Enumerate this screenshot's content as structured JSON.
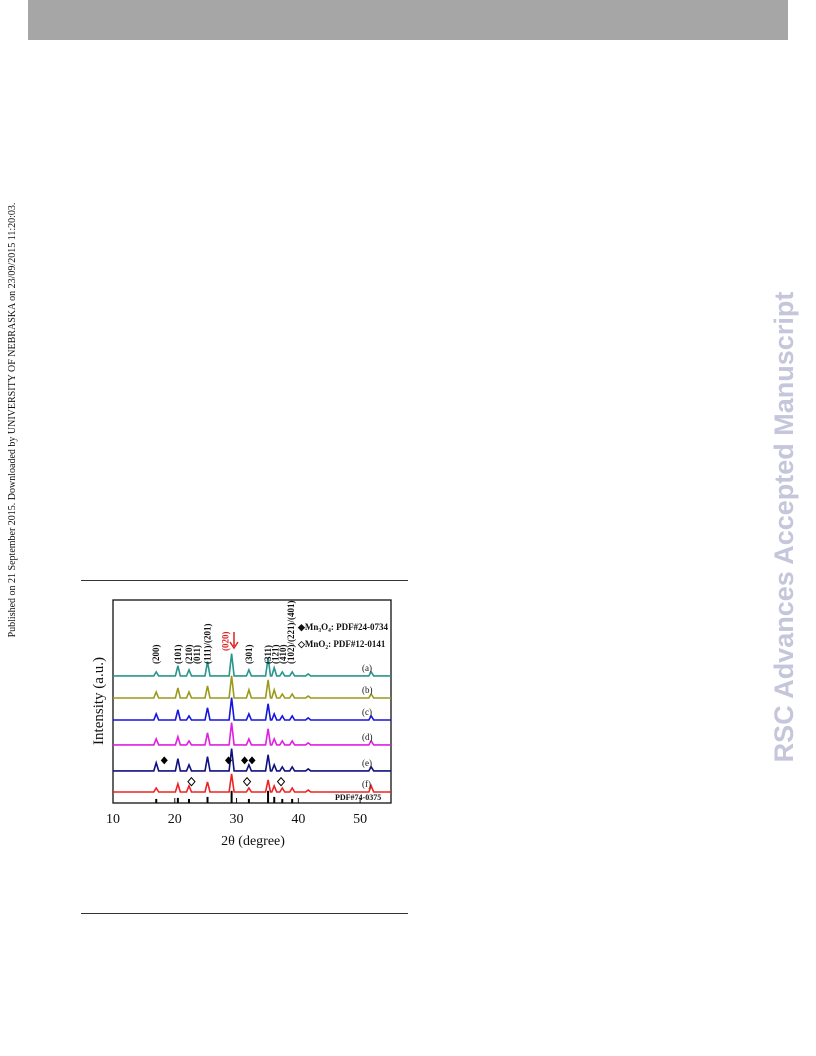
{
  "sidebar_note": "Published on 21 September 2015. Downloaded by UNIVERSITY OF NEBRASKA on 23/09/2015 11:20:03.",
  "watermark": "RSC Advances Accepted Manuscript",
  "chart_data": {
    "type": "line",
    "xlabel": "2θ (degree)",
    "ylabel": "Intensity (a.u.)",
    "xlim": [
      10,
      55
    ],
    "xticks": [
      10,
      20,
      30,
      40,
      50
    ],
    "ylim": [
      0,
      100
    ],
    "x": [
      10,
      16.6,
      17,
      17.4,
      20.1,
      20.5,
      20.9,
      21.9,
      22.3,
      22.7,
      24.9,
      25.3,
      25.7,
      28.8,
      29.2,
      29.6,
      31.6,
      32,
      32.4,
      34.7,
      35.1,
      35.5,
      35.7,
      36.1,
      36.5,
      37.0,
      37.4,
      37.8,
      38.6,
      39,
      39.4,
      41.2,
      41.6,
      42.0,
      51.4,
      51.8,
      52.2,
      55
    ],
    "series": [
      {
        "name": "(a)",
        "color": "#27968c",
        "values": [
          62.6,
          62.6,
          64.6,
          62.6,
          62.6,
          67.6,
          62.6,
          62.6,
          65.6,
          62.6,
          62.6,
          69.6,
          62.6,
          62.6,
          73.6,
          62.6,
          62.6,
          65.6,
          62.6,
          62.6,
          71.6,
          62.6,
          62.6,
          66.6,
          62.6,
          62.6,
          64.6,
          62.6,
          62.6,
          64.6,
          62.6,
          62.6,
          63.6,
          62.6,
          62.6,
          64.6,
          62.6,
          62.6
        ]
      },
      {
        "name": "(b)",
        "color": "#9a9a1a",
        "values": [
          51.7,
          51.7,
          54.7,
          51.7,
          51.7,
          56.7,
          51.7,
          51.7,
          54.7,
          51.7,
          51.7,
          57.7,
          51.7,
          51.7,
          62.7,
          51.7,
          51.7,
          55.7,
          51.7,
          51.7,
          60.7,
          51.7,
          51.7,
          55.7,
          51.7,
          51.7,
          53.7,
          51.7,
          51.7,
          53.7,
          51.7,
          51.7,
          52.7,
          51.7,
          51.7,
          53.7,
          51.7,
          51.7
        ]
      },
      {
        "name": "(c)",
        "color": "#1515e0",
        "values": [
          40.9,
          40.9,
          43.9,
          40.9,
          40.9,
          45.9,
          40.9,
          40.9,
          42.9,
          40.9,
          40.9,
          46.9,
          40.9,
          40.9,
          51.9,
          40.9,
          40.9,
          43.9,
          40.9,
          40.9,
          48.9,
          40.9,
          40.9,
          43.9,
          40.9,
          40.9,
          42.9,
          40.9,
          40.9,
          42.9,
          40.9,
          40.9,
          41.9,
          40.9,
          40.9,
          42.9,
          40.9,
          40.9
        ]
      },
      {
        "name": "(d)",
        "color": "#e020e0",
        "values": [
          28.6,
          28.6,
          31.6,
          28.6,
          28.6,
          32.6,
          28.6,
          28.6,
          30.6,
          28.6,
          28.6,
          34.6,
          28.6,
          28.6,
          39.6,
          28.6,
          28.6,
          31.6,
          28.6,
          28.6,
          36.6,
          28.6,
          28.6,
          31.6,
          28.6,
          28.6,
          30.6,
          28.6,
          28.6,
          30.6,
          28.6,
          28.6,
          29.6,
          28.6,
          28.6,
          30.6,
          28.6,
          28.6
        ]
      },
      {
        "name": "(e)",
        "color": "#101080",
        "values": [
          15.8,
          15.8,
          19.8,
          15.8,
          15.8,
          21.8,
          15.8,
          15.8,
          18.8,
          15.8,
          15.8,
          22.8,
          15.8,
          15.8,
          26.8,
          15.8,
          15.8,
          18.8,
          15.8,
          15.8,
          23.8,
          15.8,
          15.8,
          18.8,
          15.8,
          15.8,
          17.8,
          15.8,
          15.8,
          17.8,
          15.8,
          15.8,
          16.8,
          15.8,
          15.8,
          17.8,
          15.8,
          15.8
        ]
      },
      {
        "name": "(f)",
        "color": "#ee2222",
        "values": [
          5.4,
          5.4,
          7.4,
          5.4,
          5.4,
          9.4,
          5.4,
          5.4,
          8.4,
          5.4,
          5.4,
          10.4,
          5.4,
          5.4,
          14.4,
          5.4,
          5.4,
          7.4,
          5.4,
          5.4,
          11.4,
          5.4,
          5.4,
          8.4,
          5.4,
          5.4,
          7.4,
          5.4,
          5.4,
          7.4,
          5.4,
          5.4,
          6.4,
          5.4,
          5.4,
          8.4,
          5.4,
          5.4
        ]
      }
    ],
    "annotations": [
      {
        "text": "(200)",
        "x": 17
      },
      {
        "text": "(101)",
        "x": 20.5
      },
      {
        "text": "(210)",
        "x": 22.3
      },
      {
        "text": "(011)",
        "x": 23.6
      },
      {
        "text": "(111)/(201)",
        "x": 25.3
      },
      {
        "text": "(020)",
        "x": 28.2,
        "color": "#e02020"
      },
      {
        "text": "(301)",
        "x": 32
      },
      {
        "text": "(311)",
        "x": 35.1
      },
      {
        "text": "(121)",
        "x": 36.3
      },
      {
        "text": "(410)",
        "x": 37.5
      },
      {
        "text": "(102)/(221)/(401)",
        "x": 38.8
      }
    ],
    "phase_legend": [
      "◆Mn₃O₄: PDF#24-0734",
      "◇MnO₂: PDF#12-0141"
    ],
    "filled_markers": {
      "x": [
        18.3,
        28.7,
        31.3,
        32.5
      ],
      "y": 21
    },
    "open_markers": {
      "x": [
        22.7,
        31.7,
        37.2
      ],
      "y": 10.5
    },
    "reference": {
      "label": "PDF#74-0375",
      "positions": [
        17,
        20.5,
        22.3,
        25.3,
        29.2,
        32,
        35.1,
        36.1,
        37.4,
        39
      ],
      "heights": [
        2,
        2.5,
        2,
        3,
        6,
        2,
        6,
        3,
        2,
        2
      ]
    }
  }
}
